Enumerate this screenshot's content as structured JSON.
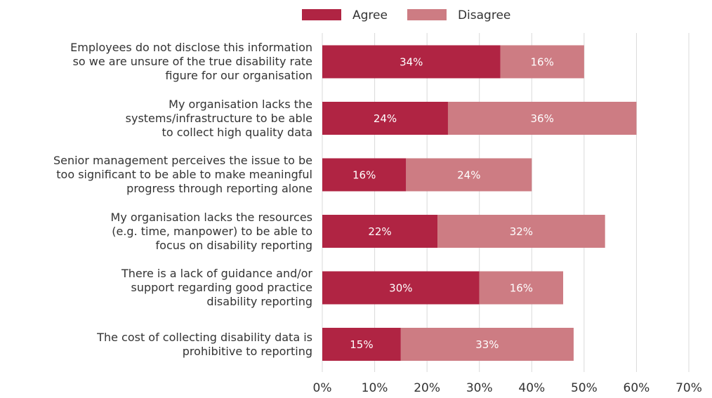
{
  "chart_data": {
    "type": "stacked-bar-horizontal",
    "categories": [
      "Employees do not disclose this information\nso we are unsure of the true disability rate\nfigure for our organisation",
      "My organisation lacks the\nsystems/infrastructure to be able\nto collect high quality data",
      "Senior management perceives the issue to be\ntoo significant to be able to make meaningful\nprogress through reporting alone",
      "My organisation lacks the resources\n(e.g. time, manpower) to be able to\nfocus on disability reporting",
      "There is a lack of guidance and/or\nsupport regarding good practice\ndisability reporting",
      "The cost of collecting disability data is\nprohibitive to reporting"
    ],
    "series": [
      {
        "name": "Agree",
        "color": "#b02443",
        "values": [
          34,
          24,
          16,
          22,
          30,
          15
        ],
        "value_labels": [
          "34%",
          "24%",
          "16%",
          "22%",
          "30%",
          "15%"
        ]
      },
      {
        "name": "Disagree",
        "color": "#cd7c83",
        "values": [
          16,
          36,
          24,
          32,
          16,
          33
        ],
        "value_labels": [
          "16%",
          "36%",
          "24%",
          "32%",
          "16%",
          "33%"
        ]
      }
    ],
    "xlim": [
      0,
      70
    ],
    "xticks": [
      {
        "value": 0,
        "label": "0%"
      },
      {
        "value": 10,
        "label": "10%"
      },
      {
        "value": 20,
        "label": "20%"
      },
      {
        "value": 30,
        "label": "30%"
      },
      {
        "value": 40,
        "label": "40%"
      },
      {
        "value": 50,
        "label": "50%"
      },
      {
        "value": 60,
        "label": "60%"
      },
      {
        "value": 70,
        "label": "70%"
      }
    ],
    "grid": true,
    "legend": "top"
  }
}
